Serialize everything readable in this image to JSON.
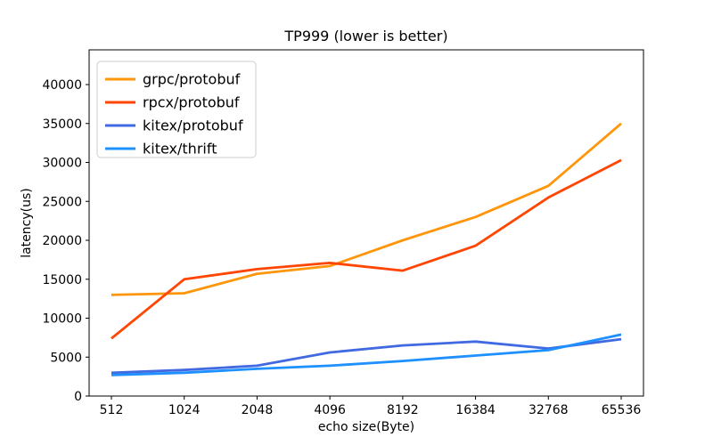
{
  "chart_data": {
    "type": "line",
    "title": "TP999 (lower is better)",
    "xlabel": "echo size(Byte)",
    "ylabel": "latency(us)",
    "x_tick_labels": [
      "512",
      "1024",
      "2048",
      "4096",
      "8192",
      "16384",
      "32768",
      "65536"
    ],
    "y_ticks": [
      0,
      5000,
      10000,
      15000,
      20000,
      25000,
      30000,
      35000,
      40000
    ],
    "ylim": [
      0,
      44460
    ],
    "grid": false,
    "legend_position": "upper left",
    "series": [
      {
        "name": "grpc/protobuf",
        "color": "#FF960A",
        "values": [
          13000,
          13200,
          15700,
          16700,
          20000,
          23000,
          27000,
          35000
        ]
      },
      {
        "name": "rpcx/protobuf",
        "color": "#FF4500",
        "values": [
          7400,
          15000,
          16300,
          17100,
          16100,
          19300,
          25500,
          30300
        ]
      },
      {
        "name": "kitex/protobuf",
        "color": "#4169E1",
        "values": [
          3000,
          3350,
          3900,
          5600,
          6500,
          7000,
          6100,
          7300
        ]
      },
      {
        "name": "kitex/thrift",
        "color": "#1E90FF",
        "values": [
          2700,
          3000,
          3500,
          3900,
          4500,
          5200,
          5900,
          7900
        ]
      }
    ],
    "colors": {
      "background": "#FFFFFF",
      "axis": "#000000",
      "text": "#000000",
      "legend_border": "#CCCCCC",
      "legend_background": "#FFFFFF"
    }
  }
}
